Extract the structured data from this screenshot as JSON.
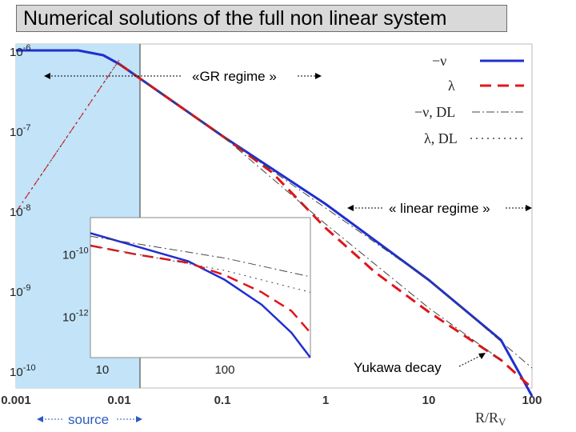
{
  "title": "Numerical solutions of the full non linear system",
  "chart_data": {
    "type": "line",
    "xscale": "log",
    "yscale": "log",
    "xlabel": "R/R",
    "xlabel_sub": "V",
    "xlim": [
      0.001,
      100
    ],
    "ylim_exp": [
      -10.2,
      -5.9
    ],
    "x_ticks": [
      "0.001",
      "0.01",
      "0.1",
      "1",
      "10",
      "100"
    ],
    "y_ticks": [
      {
        "exp": -6,
        "label": "10",
        "sup": "-6"
      },
      {
        "exp": -7,
        "label": "10",
        "sup": "-7"
      },
      {
        "exp": -8,
        "label": "10",
        "sup": "-8"
      },
      {
        "exp": -9,
        "label": "10",
        "sup": "-9"
      },
      {
        "exp": -10,
        "label": "10",
        "sup": "-10"
      }
    ],
    "legend": [
      "−ν",
      "λ",
      "−ν, DL",
      "λ, DL"
    ],
    "series": [
      {
        "name": "−ν",
        "color": "#1f2fd0",
        "style": "solid",
        "points": [
          [
            0.001,
            -5.98
          ],
          [
            0.004,
            -5.98
          ],
          [
            0.007,
            -6.04
          ],
          [
            0.01,
            -6.15
          ],
          [
            0.1,
            -7.05
          ],
          [
            1,
            -7.9
          ],
          [
            10,
            -8.85
          ],
          [
            50,
            -9.6
          ],
          [
            100,
            -10.3
          ]
        ]
      },
      {
        "name": "λ",
        "color": "#e0161b",
        "style": "dash",
        "points": [
          [
            0.01,
            -6.15
          ],
          [
            0.1,
            -7.05
          ],
          [
            0.3,
            -7.5
          ],
          [
            1,
            -8.2
          ],
          [
            3,
            -8.75
          ],
          [
            10,
            -9.25
          ],
          [
            50,
            -9.85
          ],
          [
            100,
            -10.2
          ]
        ]
      },
      {
        "name": "−ν, DL",
        "color": "#444444",
        "style": "dashdot",
        "points": [
          [
            0.01,
            -6.15
          ],
          [
            0.1,
            -7.05
          ],
          [
            1,
            -7.95
          ],
          [
            10,
            -8.85
          ],
          [
            100,
            -9.95
          ]
        ]
      },
      {
        "name": "λ, DL",
        "color": "#444444",
        "style": "dot",
        "points": [
          [
            0.001,
            -8.0
          ],
          [
            0.01,
            -6.1
          ]
        ]
      },
      {
        "name": "λ, DL",
        "color": "#444444",
        "style": "dashdot",
        "points": [
          [
            0.01,
            -6.15
          ],
          [
            0.1,
            -7.05
          ],
          [
            1,
            -8.15
          ],
          [
            10,
            -9.2
          ],
          [
            50,
            -9.85
          ]
        ]
      },
      {
        "name": "λ",
        "color": "#e0161b",
        "style": "dashdot",
        "points": [
          [
            0.001,
            -8.0
          ],
          [
            0.01,
            -6.1
          ]
        ]
      }
    ],
    "annotations": {
      "gr_regime": "«GR regime »",
      "linear_regime": "« linear regime »",
      "yukawa": "Yukawa decay",
      "source": "source"
    },
    "inset": {
      "xlim": [
        8,
        500
      ],
      "x_ticks": [
        "10",
        "100"
      ],
      "y_ticks": [
        {
          "exp": -10,
          "label": "10",
          "sup": "-10"
        },
        {
          "exp": -12,
          "label": "10",
          "sup": "-12"
        }
      ],
      "ylim_exp": [
        -13.3,
        -8.8
      ],
      "series": [
        {
          "name": "−ν",
          "color": "#1f2fd0",
          "style": "solid",
          "points": [
            [
              8,
              -9.3
            ],
            [
              20,
              -9.75
            ],
            [
              50,
              -10.2
            ],
            [
              100,
              -10.8
            ],
            [
              200,
              -11.6
            ],
            [
              350,
              -12.5
            ],
            [
              500,
              -13.3
            ]
          ]
        },
        {
          "name": "λ",
          "color": "#e0161b",
          "style": "dash",
          "points": [
            [
              8,
              -9.7
            ],
            [
              20,
              -10.0
            ],
            [
              50,
              -10.25
            ],
            [
              100,
              -10.65
            ],
            [
              200,
              -11.2
            ],
            [
              350,
              -11.8
            ],
            [
              500,
              -12.5
            ]
          ]
        },
        {
          "name": "−ν, DL",
          "color": "#444444",
          "style": "dashdot",
          "points": [
            [
              8,
              -9.4
            ],
            [
              100,
              -10.1
            ],
            [
              500,
              -10.7
            ]
          ]
        },
        {
          "name": "λ, DL",
          "color": "#444444",
          "style": "dot",
          "points": [
            [
              8,
              -9.7
            ],
            [
              100,
              -10.5
            ],
            [
              500,
              -11.2
            ]
          ]
        }
      ]
    }
  }
}
